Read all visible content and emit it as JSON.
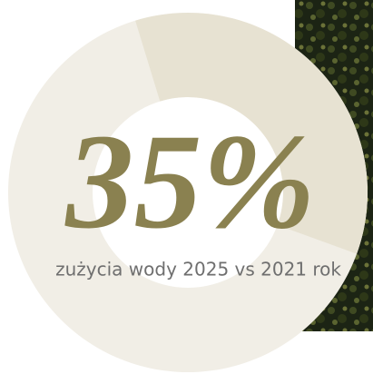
{
  "stat": {
    "value_label": "35%",
    "caption": "zużycia wody 2025 vs 2021 rok"
  }
}
